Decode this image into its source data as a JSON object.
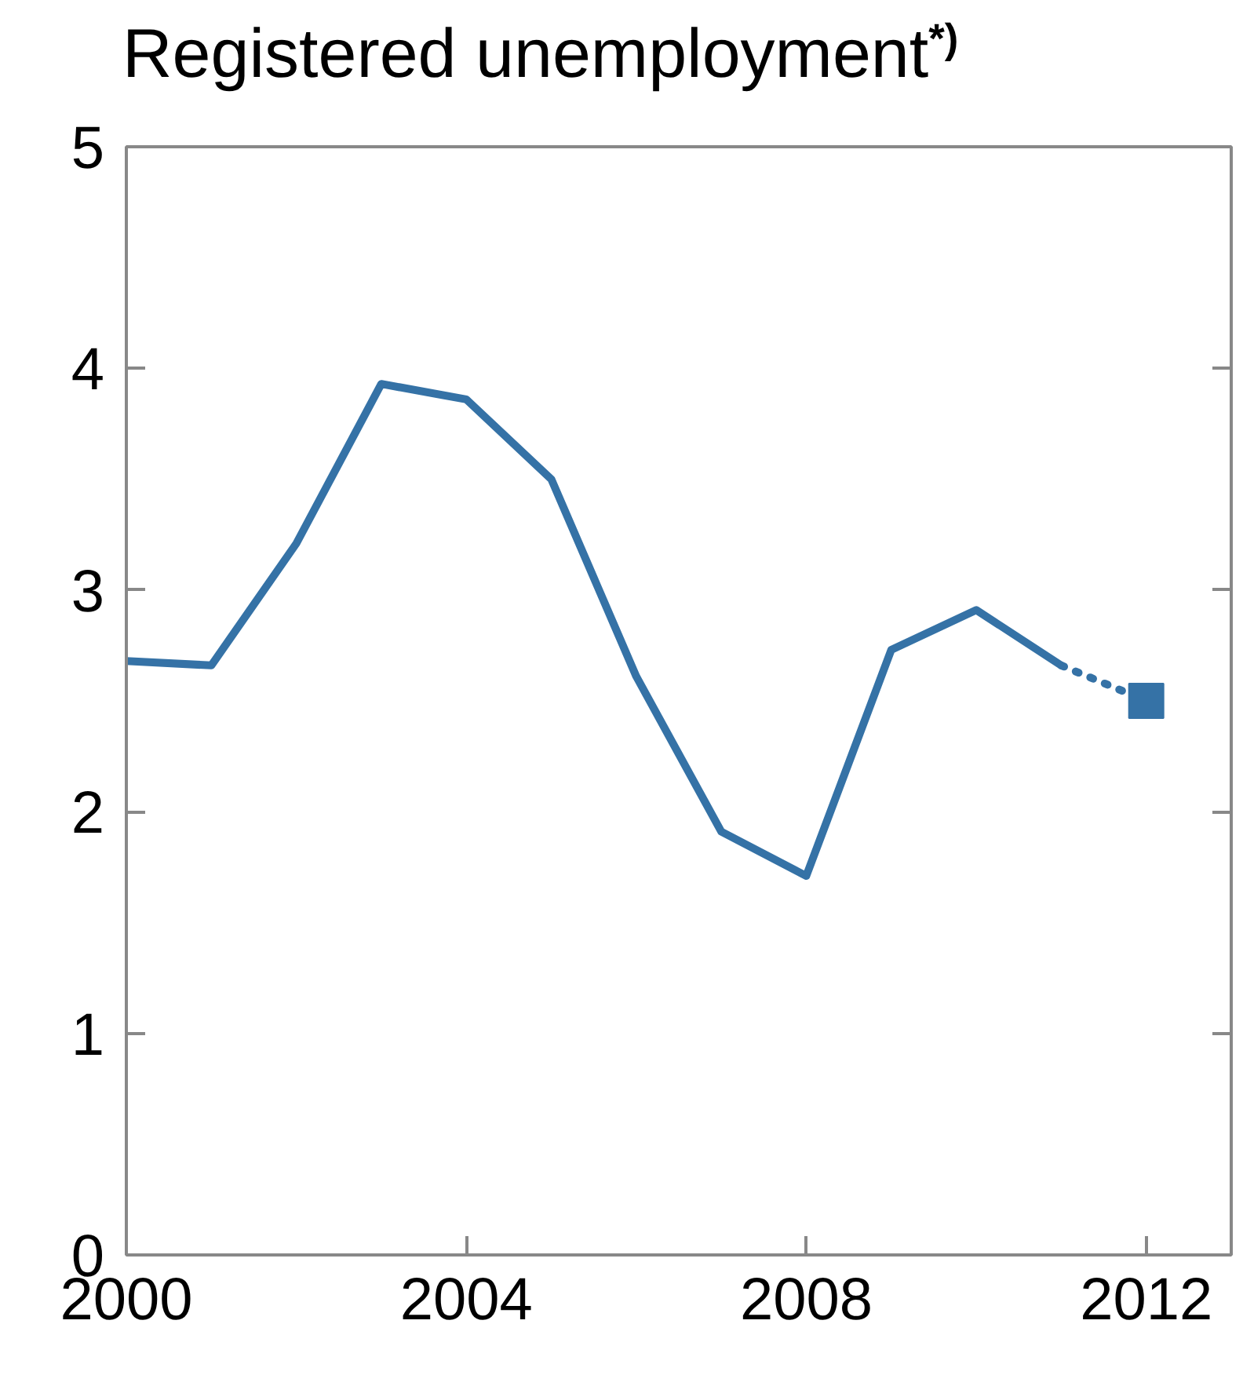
{
  "chart_data": {
    "type": "line",
    "title": "Registered unemployment$^{*)}$",
    "xlim": [
      2000,
      2013
    ],
    "xticks": [
      2000,
      2004,
      2008,
      2012
    ],
    "ylim": [
      0,
      5
    ],
    "yticks": [
      0,
      1,
      2,
      3,
      4,
      5
    ],
    "grid": false,
    "series": [
      {
        "color": "#3572a6",
        "line_style": "solid",
        "marker": "none",
        "x": [
          2000,
          2001,
          2002,
          2003,
          2004,
          2005,
          2006,
          2007,
          2008,
          2009,
          2010,
          2011
        ],
        "values": [
          2.68,
          2.66,
          3.21,
          3.93,
          3.86,
          3.5,
          2.61,
          1.91,
          1.71,
          2.73,
          2.91,
          2.66
        ]
      },
      {
        "color": "#3572a6",
        "line_style": "dotted",
        "marker": "none",
        "x": [
          2011,
          2012
        ],
        "values": [
          2.66,
          2.5
        ]
      },
      {
        "type": "scatter",
        "color": "#3572a6",
        "marker": "square",
        "x": [
          2012
        ],
        "values": [
          2.5
        ]
      }
    ]
  }
}
